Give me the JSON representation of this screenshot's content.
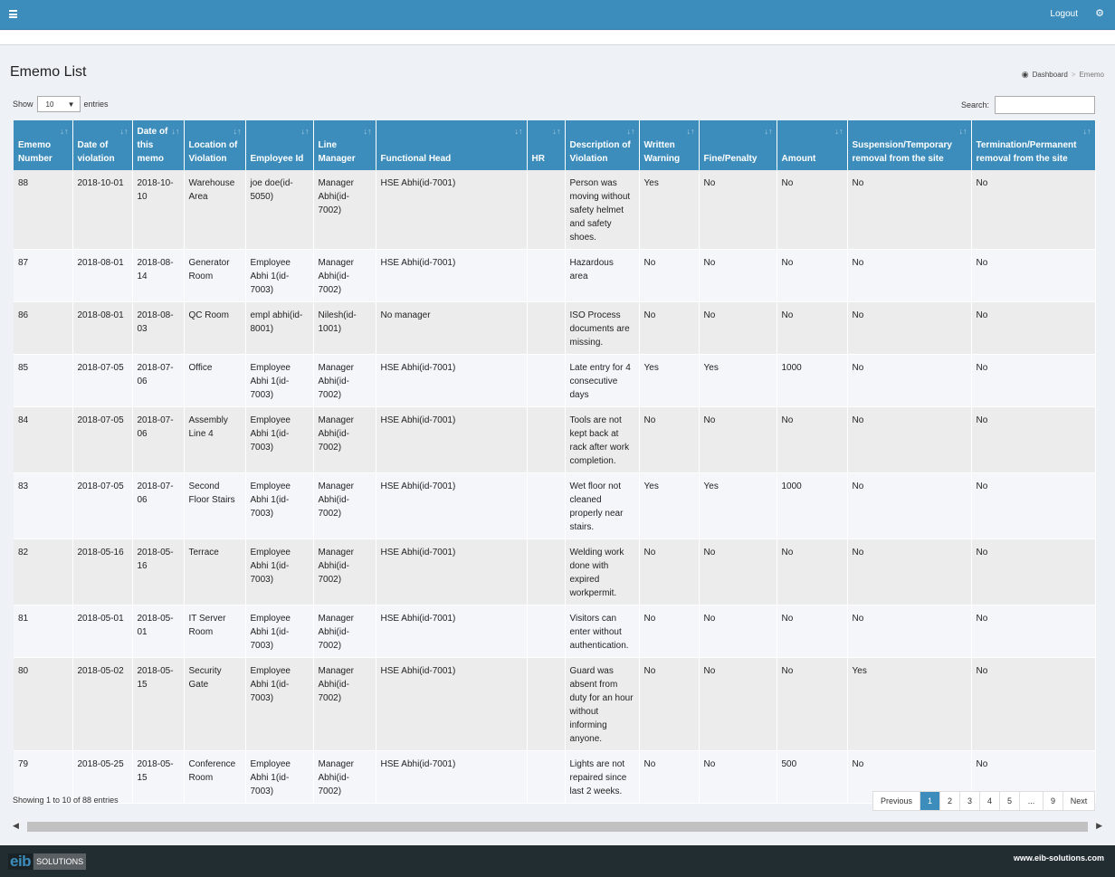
{
  "header": {
    "logout_label": "Logout",
    "menu_icon": "hamburger-icon",
    "settings_icon": "cogs-icon"
  },
  "page": {
    "title": "Ememo List",
    "breadcrumb": {
      "home": "Dashboard",
      "separator": ">",
      "current": "Ememo"
    }
  },
  "controls": {
    "show_label": "Show",
    "entries_value": "10",
    "entries_label": "entries",
    "search_label": "Search:",
    "search_value": ""
  },
  "table": {
    "columns": [
      "Ememo Number",
      "Date of violation",
      "Date of this memo",
      "Location of Violation",
      "Employee Id",
      "Line Manager",
      "Functional Head",
      "HR",
      "Description of Violation",
      "Written Warning",
      "Fine/Penalty",
      "Amount",
      "Suspension/Temporary removal from the site",
      "Termination/Permanent removal from the site"
    ],
    "rows": [
      [
        "88",
        "2018-10-01",
        "2018-10-10",
        "Warehouse Area",
        "joe doe(id-5050)",
        "Manager Abhi(id-7002)",
        "HSE Abhi(id-7001)",
        "",
        "Person was moving without safety helmet and safety shoes.",
        "Yes",
        "No",
        "No",
        "No",
        "No"
      ],
      [
        "87",
        "2018-08-01",
        "2018-08-14",
        "Generator Room",
        "Employee Abhi 1(id-7003)",
        "Manager Abhi(id-7002)",
        "HSE Abhi(id-7001)",
        "",
        "Hazardous area",
        "No",
        "No",
        "No",
        "No",
        "No"
      ],
      [
        "86",
        "2018-08-01",
        "2018-08-03",
        "QC Room",
        "empl abhi(id-8001)",
        "Nilesh(id-1001)",
        "No manager",
        "",
        "ISO Process documents are missing.",
        "No",
        "No",
        "No",
        "No",
        "No"
      ],
      [
        "85",
        "2018-07-05",
        "2018-07-06",
        "Office",
        "Employee Abhi 1(id-7003)",
        "Manager Abhi(id-7002)",
        "HSE Abhi(id-7001)",
        "",
        "Late entry for 4 consecutive days",
        "Yes",
        "Yes",
        "1000",
        "No",
        "No"
      ],
      [
        "84",
        "2018-07-05",
        "2018-07-06",
        "Assembly Line 4",
        "Employee Abhi 1(id-7003)",
        "Manager Abhi(id-7002)",
        "HSE Abhi(id-7001)",
        "",
        "Tools are not kept back at rack after work completion.",
        "No",
        "No",
        "No",
        "No",
        "No"
      ],
      [
        "83",
        "2018-07-05",
        "2018-07-06",
        "Second Floor Stairs",
        "Employee Abhi 1(id-7003)",
        "Manager Abhi(id-7002)",
        "HSE Abhi(id-7001)",
        "",
        "Wet floor not cleaned properly near stairs.",
        "Yes",
        "Yes",
        "1000",
        "No",
        "No"
      ],
      [
        "82",
        "2018-05-16",
        "2018-05-16",
        "Terrace",
        "Employee Abhi 1(id-7003)",
        "Manager Abhi(id-7002)",
        "HSE Abhi(id-7001)",
        "",
        "Welding work done with expired workpermit.",
        "No",
        "No",
        "No",
        "No",
        "No"
      ],
      [
        "81",
        "2018-05-01",
        "2018-05-01",
        "IT Server Room",
        "Employee Abhi 1(id-7003)",
        "Manager Abhi(id-7002)",
        "HSE Abhi(id-7001)",
        "",
        "Visitors can enter without authentication.",
        "No",
        "No",
        "No",
        "No",
        "No"
      ],
      [
        "80",
        "2018-05-02",
        "2018-05-15",
        "Security Gate",
        "Employee Abhi 1(id-7003)",
        "Manager Abhi(id-7002)",
        "HSE Abhi(id-7001)",
        "",
        "Guard was absent from duty for an hour without informing anyone.",
        "No",
        "No",
        "No",
        "Yes",
        "No"
      ],
      [
        "79",
        "2018-05-25",
        "2018-05-15",
        "Conference Room",
        "Employee Abhi 1(id-7003)",
        "Manager Abhi(id-7002)",
        "HSE Abhi(id-7001)",
        "",
        "Lights are not repaired since last 2 weeks.",
        "No",
        "No",
        "500",
        "No",
        "No"
      ]
    ]
  },
  "footer_info": {
    "showing": "Showing 1 to 10 of 88 entries"
  },
  "pagination": {
    "previous": "Previous",
    "pages": [
      "1",
      "2",
      "3",
      "4",
      "5",
      "...",
      "9"
    ],
    "next": "Next",
    "active_page": "1"
  },
  "footer": {
    "logo_main": "eib",
    "logo_sub": "SOLUTIONS",
    "site": "www.eib-solutions.com"
  },
  "colors": {
    "primary": "#3c8dbc",
    "footer": "#222d32"
  }
}
